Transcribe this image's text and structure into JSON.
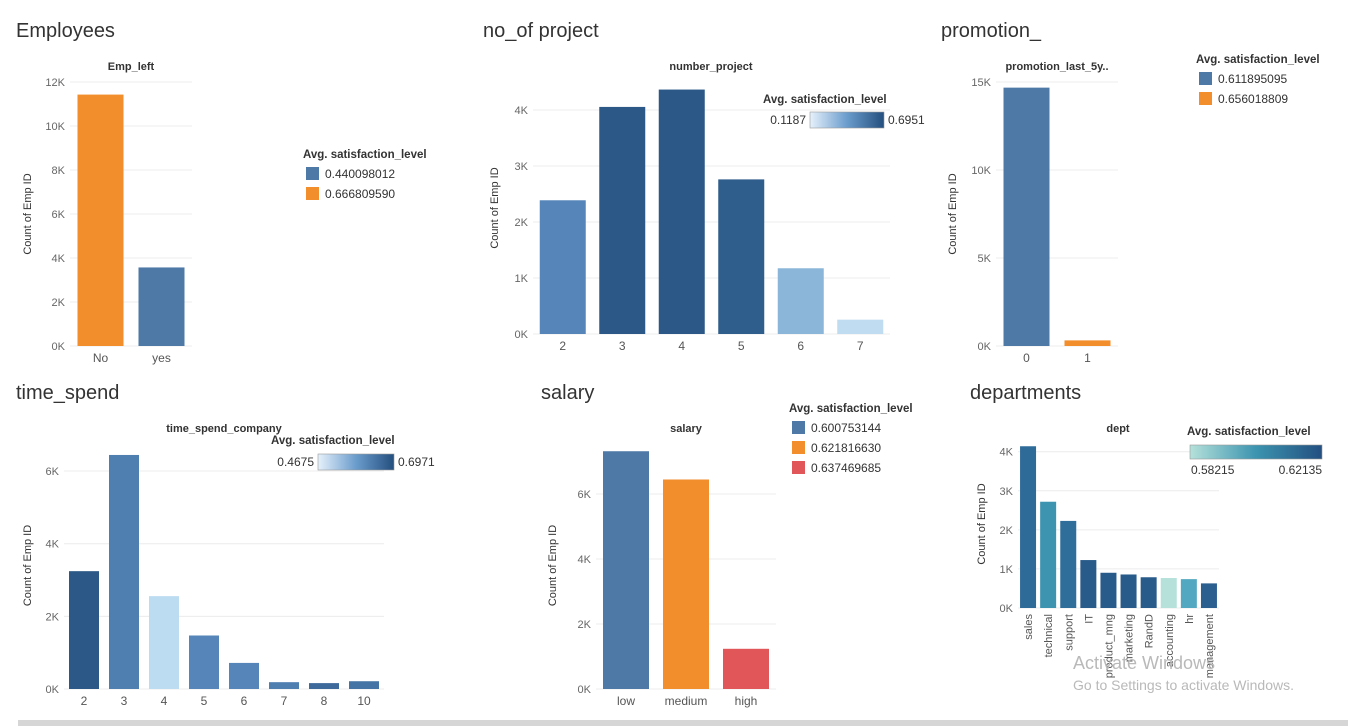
{
  "panels": {
    "employees": "Employees",
    "projects": "no_of project",
    "promotion": "promotion_",
    "time_spend": "time_spend",
    "salary": "salary",
    "departments": "departments"
  },
  "chart_data": [
    {
      "id": "emp_left",
      "type": "bar",
      "title": "Emp_left",
      "ylabel": "Count of Emp ID",
      "categories": [
        "No",
        "yes"
      ],
      "values": [
        11428,
        3571
      ],
      "colors": [
        "#f28e2b",
        "#4e79a7"
      ],
      "ylim": [
        0,
        12000
      ],
      "yticks": [
        0,
        2000,
        4000,
        6000,
        8000,
        10000,
        12000
      ],
      "ytick_labels": [
        "0K",
        "2K",
        "4K",
        "6K",
        "8K",
        "10K",
        "12K"
      ],
      "legend": {
        "title": "Avg. satisfaction_level",
        "items": [
          {
            "label": "0.440098012",
            "color": "#4e79a7"
          },
          {
            "label": "0.666809590",
            "color": "#f28e2b"
          }
        ]
      }
    },
    {
      "id": "number_project",
      "type": "bar",
      "title": "number_project",
      "ylabel": "Count of Emp ID",
      "categories": [
        "2",
        "3",
        "4",
        "5",
        "6",
        "7"
      ],
      "values": [
        2388,
        4055,
        4365,
        2761,
        1174,
        256
      ],
      "colors": [
        "#5585b9",
        "#2b5886",
        "#2b5886",
        "#2f5d8c",
        "#8cb6d9",
        "#c0dcf0"
      ],
      "ylim": [
        0,
        4500
      ],
      "yticks": [
        0,
        1000,
        2000,
        3000,
        4000
      ],
      "ytick_labels": [
        "0K",
        "1K",
        "2K",
        "3K",
        "4K"
      ],
      "color_legend": {
        "title": "Avg. satisfaction_level",
        "min": "0.1187",
        "max": "0.6951"
      }
    },
    {
      "id": "promotion",
      "type": "bar",
      "title": "promotion_last_5y..",
      "ylabel": "Count of Emp ID",
      "categories": [
        "0",
        "1"
      ],
      "values": [
        14680,
        319
      ],
      "colors": [
        "#4e79a7",
        "#f28e2b"
      ],
      "ylim": [
        0,
        15000
      ],
      "yticks": [
        0,
        5000,
        10000,
        15000
      ],
      "ytick_labels": [
        "0K",
        "5K",
        "10K",
        "15K"
      ],
      "legend": {
        "title": "Avg. satisfaction_level",
        "items": [
          {
            "label": "0.611895095",
            "color": "#4e79a7"
          },
          {
            "label": "0.656018809",
            "color": "#f28e2b"
          }
        ]
      }
    },
    {
      "id": "time_spend_company",
      "type": "bar",
      "title": "time_spend_company",
      "ylabel": "Count of Emp ID",
      "categories": [
        "2",
        "3",
        "4",
        "5",
        "6",
        "7",
        "8",
        "10"
      ],
      "values": [
        3244,
        6443,
        2557,
        1473,
        718,
        188,
        162,
        214
      ],
      "colors": [
        "#2b5886",
        "#4e7fb0",
        "#bcdcf1",
        "#5585b9",
        "#5585b9",
        "#4e7fb0",
        "#3d6a9a",
        "#4374a5"
      ],
      "ylim": [
        0,
        6800
      ],
      "yticks": [
        0,
        2000,
        4000,
        6000
      ],
      "ytick_labels": [
        "0K",
        "2K",
        "4K",
        "6K"
      ],
      "color_legend": {
        "title": "Avg. satisfaction_level",
        "min": "0.4675",
        "max": "0.6971"
      }
    },
    {
      "id": "salary",
      "type": "bar",
      "title": "salary",
      "ylabel": "Count of Emp ID",
      "categories": [
        "low",
        "medium",
        "high"
      ],
      "values": [
        7316,
        6446,
        1237
      ],
      "colors": [
        "#4e79a7",
        "#f28e2b",
        "#e15759"
      ],
      "ylim": [
        0,
        7600
      ],
      "yticks": [
        0,
        2000,
        4000,
        6000
      ],
      "ytick_labels": [
        "0K",
        "2K",
        "4K",
        "6K"
      ],
      "legend": {
        "title": "Avg. satisfaction_level",
        "items": [
          {
            "label": "0.600753144",
            "color": "#4e79a7"
          },
          {
            "label": "0.621816630",
            "color": "#f28e2b"
          },
          {
            "label": "0.637469685",
            "color": "#e15759"
          }
        ]
      }
    },
    {
      "id": "dept",
      "type": "bar",
      "title": "dept",
      "ylabel": "Count of Emp ID",
      "categories": [
        "sales",
        "technical",
        "support",
        "IT",
        "product_mng",
        "marketing",
        "RandD",
        "accounting",
        "hr",
        "management"
      ],
      "values": [
        4140,
        2720,
        2229,
        1227,
        902,
        858,
        787,
        767,
        739,
        630
      ],
      "colors": [
        "#2e6b98",
        "#3c94b0",
        "#2f6e9b",
        "#285a8a",
        "#285a8a",
        "#285a8a",
        "#285a8a",
        "#b5e1da",
        "#52a8c0",
        "#2b5f8f"
      ],
      "ylim": [
        0,
        4300
      ],
      "yticks": [
        0,
        1000,
        2000,
        3000,
        4000
      ],
      "ytick_labels": [
        "0K",
        "1K",
        "2K",
        "3K",
        "4K"
      ],
      "color_legend": {
        "title": "Avg. satisfaction_level",
        "min": "0.58215",
        "max": "0.62135"
      }
    }
  ],
  "watermark": {
    "line1": "Activate Windows",
    "line2": "Go to Settings to activate Windows."
  }
}
